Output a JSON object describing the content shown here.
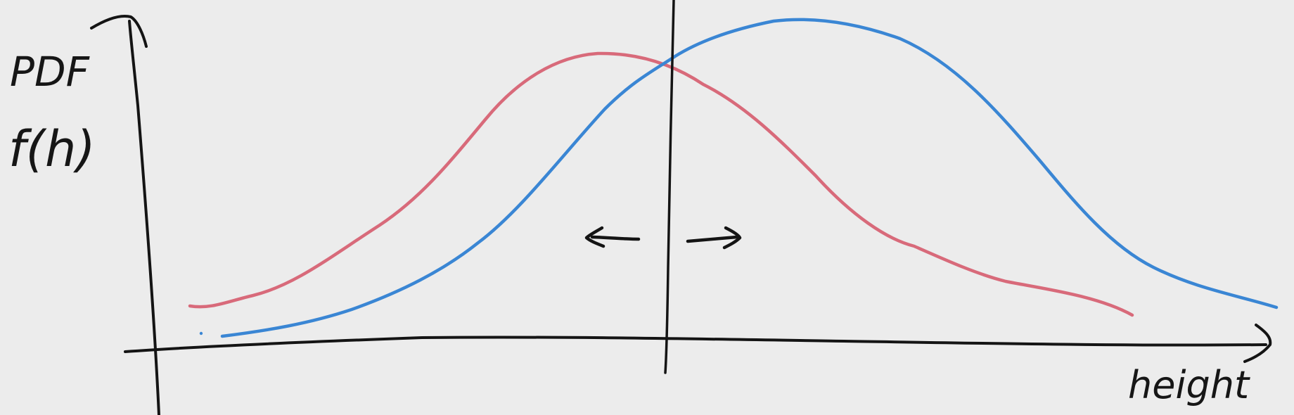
{
  "labels": {
    "y_axis_top": "PDF",
    "y_axis_bottom": "f(h)",
    "x_axis": "height"
  },
  "curves": [
    {
      "id": "red-curve",
      "color": "#d86a7a"
    },
    {
      "id": "blue-curve",
      "color": "#3a86d4"
    }
  ],
  "colors": {
    "background": "#ececec",
    "ink": "#141414"
  },
  "arrows": [
    "left",
    "right"
  ]
}
